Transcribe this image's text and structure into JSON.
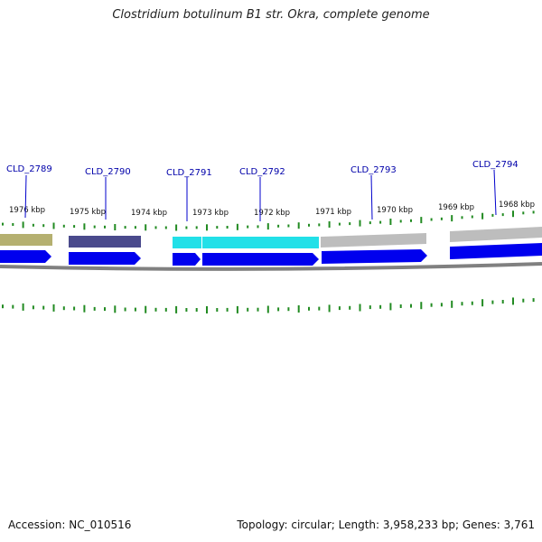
{
  "title": "Clostridium botulinum B1 str. Okra, complete genome",
  "footer": {
    "accession": "Accession: NC_010516",
    "topology": "Topology: circular; Length: 3,958,233 bp; Genes: 3,761"
  },
  "colors": {
    "background": "#ffffff",
    "cds": "#0000ee",
    "tick": "#228b22",
    "backbone": "#808080",
    "label": "#0000aa"
  },
  "kbp_labels": [
    "1976 kbp",
    "1975 kbp",
    "1974 kbp",
    "1973 kbp",
    "1972 kbp",
    "1971 kbp",
    "1970 kbp",
    "1969 kbp",
    "1968 kbp"
  ],
  "genes": [
    {
      "label": "CLD_2789",
      "color": "#b5b070"
    },
    {
      "label": "CLD_2790",
      "color": "#4a4a8c"
    },
    {
      "label": "CLD_2791",
      "color": "#22e0e8"
    },
    {
      "label": "CLD_2792",
      "color": "#22e0e8"
    },
    {
      "label": "CLD_2793",
      "color": "#bdbdbd"
    },
    {
      "label": "CLD_2794",
      "color": "#bdbdbd"
    }
  ]
}
